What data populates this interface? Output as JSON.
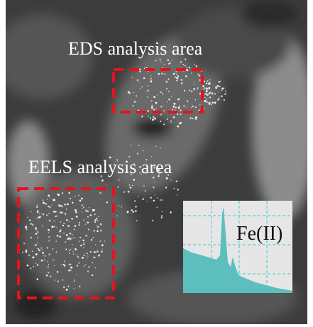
{
  "labels": {
    "eds": "EDS analysis area",
    "eels": "EELS analysis area",
    "inset": "Fe(II)"
  }
}
